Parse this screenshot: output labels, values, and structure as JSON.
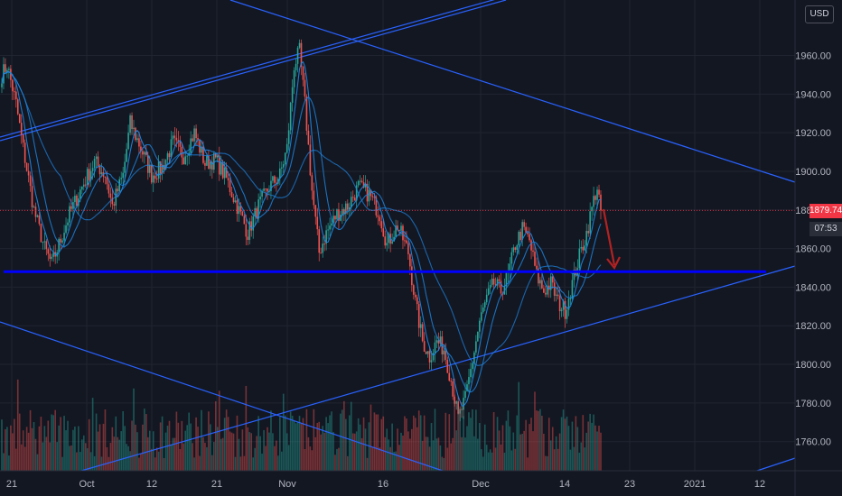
{
  "currency": "USD",
  "price_tag": {
    "price": "1879.74",
    "countdown": "07:53",
    "color": "#f23645"
  },
  "colors": {
    "background": "#131722",
    "grid": "#1f2430",
    "up_candle": "#26a69a",
    "down_candle": "#ef5350",
    "trendline": "#2962ff",
    "support_line": "#0000ff",
    "moving_average": "#1e88e5",
    "arrow": "#b22222"
  },
  "chart_data": {
    "type": "candlestick",
    "x_ticks": [
      "21",
      "Oct",
      "12",
      "21",
      "Nov",
      "16",
      "Dec",
      "14",
      "23",
      "2021",
      "12"
    ],
    "y_ticks": [
      1760,
      1780,
      1800,
      1820,
      1840,
      1860,
      1880,
      1900,
      1920,
      1940,
      1960
    ],
    "ylim": [
      1748,
      1982
    ],
    "grid": true,
    "last_price": 1879.74,
    "support_level": 1848,
    "price_path": [
      {
        "i": 0,
        "v": 1950
      },
      {
        "i": 3,
        "v": 1955
      },
      {
        "i": 8,
        "v": 1935
      },
      {
        "i": 12,
        "v": 1912
      },
      {
        "i": 18,
        "v": 1880
      },
      {
        "i": 24,
        "v": 1860
      },
      {
        "i": 28,
        "v": 1852
      },
      {
        "i": 32,
        "v": 1862
      },
      {
        "i": 38,
        "v": 1878
      },
      {
        "i": 45,
        "v": 1892
      },
      {
        "i": 52,
        "v": 1905
      },
      {
        "i": 58,
        "v": 1898
      },
      {
        "i": 62,
        "v": 1882
      },
      {
        "i": 68,
        "v": 1898
      },
      {
        "i": 72,
        "v": 1925
      },
      {
        "i": 78,
        "v": 1912
      },
      {
        "i": 84,
        "v": 1898
      },
      {
        "i": 90,
        "v": 1902
      },
      {
        "i": 96,
        "v": 1915
      },
      {
        "i": 102,
        "v": 1908
      },
      {
        "i": 108,
        "v": 1920
      },
      {
        "i": 114,
        "v": 1904
      },
      {
        "i": 120,
        "v": 1906
      },
      {
        "i": 126,
        "v": 1896
      },
      {
        "i": 132,
        "v": 1882
      },
      {
        "i": 138,
        "v": 1868
      },
      {
        "i": 144,
        "v": 1882
      },
      {
        "i": 150,
        "v": 1892
      },
      {
        "i": 156,
        "v": 1898
      },
      {
        "i": 160,
        "v": 1912
      },
      {
        "i": 164,
        "v": 1955
      },
      {
        "i": 167,
        "v": 1962
      },
      {
        "i": 170,
        "v": 1935
      },
      {
        "i": 174,
        "v": 1890
      },
      {
        "i": 178,
        "v": 1858
      },
      {
        "i": 182,
        "v": 1868
      },
      {
        "i": 188,
        "v": 1878
      },
      {
        "i": 194,
        "v": 1882
      },
      {
        "i": 200,
        "v": 1892
      },
      {
        "i": 206,
        "v": 1888
      },
      {
        "i": 212,
        "v": 1878
      },
      {
        "i": 216,
        "v": 1862
      },
      {
        "i": 222,
        "v": 1872
      },
      {
        "i": 228,
        "v": 1858
      },
      {
        "i": 232,
        "v": 1832
      },
      {
        "i": 236,
        "v": 1812
      },
      {
        "i": 240,
        "v": 1804
      },
      {
        "i": 244,
        "v": 1812
      },
      {
        "i": 248,
        "v": 1808
      },
      {
        "i": 252,
        "v": 1792
      },
      {
        "i": 256,
        "v": 1772
      },
      {
        "i": 260,
        "v": 1782
      },
      {
        "i": 264,
        "v": 1802
      },
      {
        "i": 268,
        "v": 1822
      },
      {
        "i": 272,
        "v": 1834
      },
      {
        "i": 276,
        "v": 1842
      },
      {
        "i": 280,
        "v": 1838
      },
      {
        "i": 284,
        "v": 1846
      },
      {
        "i": 288,
        "v": 1862
      },
      {
        "i": 292,
        "v": 1870
      },
      {
        "i": 296,
        "v": 1864
      },
      {
        "i": 300,
        "v": 1846
      },
      {
        "i": 304,
        "v": 1838
      },
      {
        "i": 308,
        "v": 1842
      },
      {
        "i": 312,
        "v": 1832
      },
      {
        "i": 316,
        "v": 1828
      },
      {
        "i": 320,
        "v": 1842
      },
      {
        "i": 324,
        "v": 1856
      },
      {
        "i": 328,
        "v": 1868
      },
      {
        "i": 332,
        "v": 1885
      },
      {
        "i": 334,
        "v": 1892
      },
      {
        "i": 336,
        "v": 1880
      }
    ],
    "n_candles": 337
  }
}
